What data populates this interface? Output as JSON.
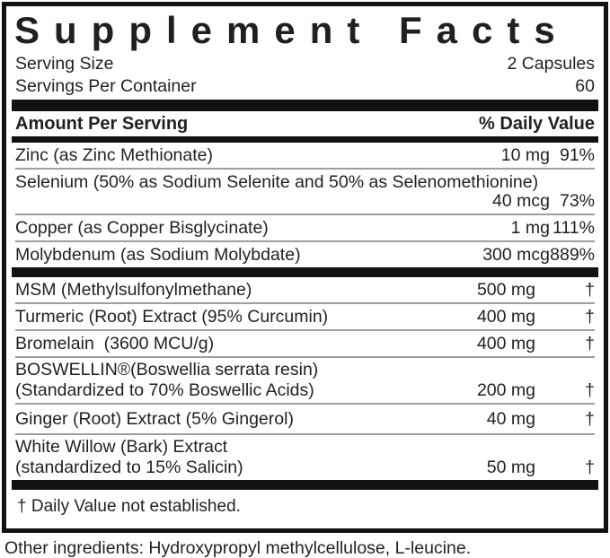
{
  "title": "Supplement Facts",
  "serving": {
    "size_label": "Serving Size",
    "size_value": "2 Capsules",
    "per_container_label": "Servings Per Container",
    "per_container_value": "60"
  },
  "table": {
    "header": {
      "amount_label": "Amount Per Serving",
      "dv_label": "% Daily Value"
    },
    "section1": [
      {
        "name": "Zinc (as Zinc Methionate)",
        "amount": "10 mg",
        "dv": "91%"
      },
      {
        "name": "Selenium (50% as Sodium Selenite and 50% as Selenomethionine)",
        "amount": "40 mcg",
        "dv": "73%"
      },
      {
        "name": "Copper (as Copper Bisglycinate)",
        "amount": "1 mg",
        "dv": "111%"
      },
      {
        "name": "Molybdenum (as Sodium Molybdate)",
        "amount": "300 mcg",
        "dv": "889%"
      }
    ],
    "section2": [
      {
        "name": "MSM (Methylsulfonylmethane)",
        "amount": "500 mg",
        "dv": "†"
      },
      {
        "name": "Turmeric (Root) Extract (95% Curcumin)",
        "amount": "400 mg",
        "dv": "†"
      },
      {
        "name": "Bromelain  (3600 MCU/g)",
        "amount": "400 mg",
        "dv": "†"
      },
      {
        "name_lines": [
          "BOSWELLIN®(Boswellia serrata resin)",
          "(Standardized to 70% Boswellic Acids)"
        ],
        "amount": "200 mg",
        "dv": "†"
      },
      {
        "name": "Ginger (Root) Extract (5% Gingerol)",
        "amount": "40 mg",
        "dv": "†"
      },
      {
        "name_lines": [
          "White Willow (Bark) Extract",
          "(standardized to 15% Salicin)"
        ],
        "amount": "50 mg",
        "dv": "†"
      }
    ],
    "footnote": "† Daily Value not established."
  },
  "other_ingredients": "Other ingredients: Hydroxypropyl methylcellulose, L-leucine.",
  "colors": {
    "text": "#231f20",
    "bar": "#141112",
    "separator": "#9e9e9e",
    "background": "#ffffff"
  }
}
